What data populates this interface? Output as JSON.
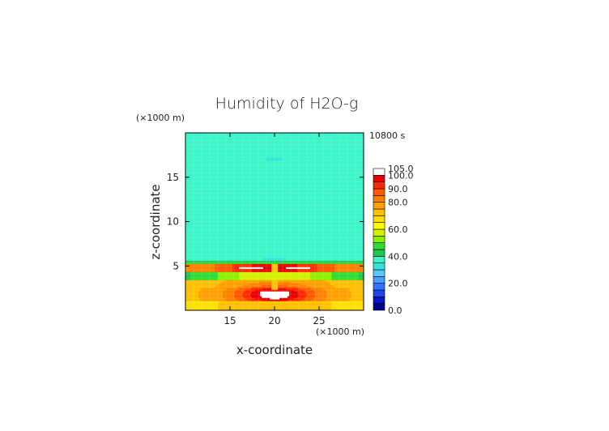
{
  "chart_data": {
    "type": "heatmap",
    "title": "Humidity of H2O-g",
    "time_label": "10800 s",
    "xlabel": "x-coordinate",
    "ylabel": "z-coordinate",
    "x_unit": "(×1000 m)",
    "y_unit": "(×1000 m)",
    "xlim": [
      10,
      30
    ],
    "ylim": [
      0,
      20
    ],
    "x_ticks": [
      15,
      20,
      25
    ],
    "y_ticks": [
      5,
      10,
      15
    ],
    "colorbar": {
      "levels": [
        0,
        5,
        10,
        15,
        20,
        25,
        30,
        35,
        40,
        45,
        50,
        55,
        60,
        65,
        70,
        75,
        80,
        85,
        90,
        95,
        100,
        105
      ],
      "colors": [
        "#00008c",
        "#0a14c8",
        "#1e46f0",
        "#2d73ff",
        "#46a0ff",
        "#5ac8ff",
        "#32e6dc",
        "#3cf5c8",
        "#1ec850",
        "#32dc32",
        "#8cf000",
        "#d2f000",
        "#ffff00",
        "#ffe100",
        "#ffc000",
        "#ffa000",
        "#ff8000",
        "#ff5a00",
        "#ff2800",
        "#e60000",
        "#ffffff"
      ],
      "tick_labels": [
        "0.0",
        "20.0",
        "40.0",
        "60.0",
        "80.0",
        "90.0",
        "100.0",
        "105.0"
      ]
    },
    "field_description": [
      {
        "z_range": [
          5.5,
          20
        ],
        "value": 40
      },
      {
        "z_range": [
          4.3,
          5.3
        ],
        "value": 95
      },
      {
        "z_range": [
          3.5,
          4.3
        ],
        "value": 60
      },
      {
        "z_range": [
          1.0,
          3.5
        ],
        "value": 80
      },
      {
        "z_range": [
          0,
          1.0
        ],
        "value": 75
      }
    ]
  }
}
